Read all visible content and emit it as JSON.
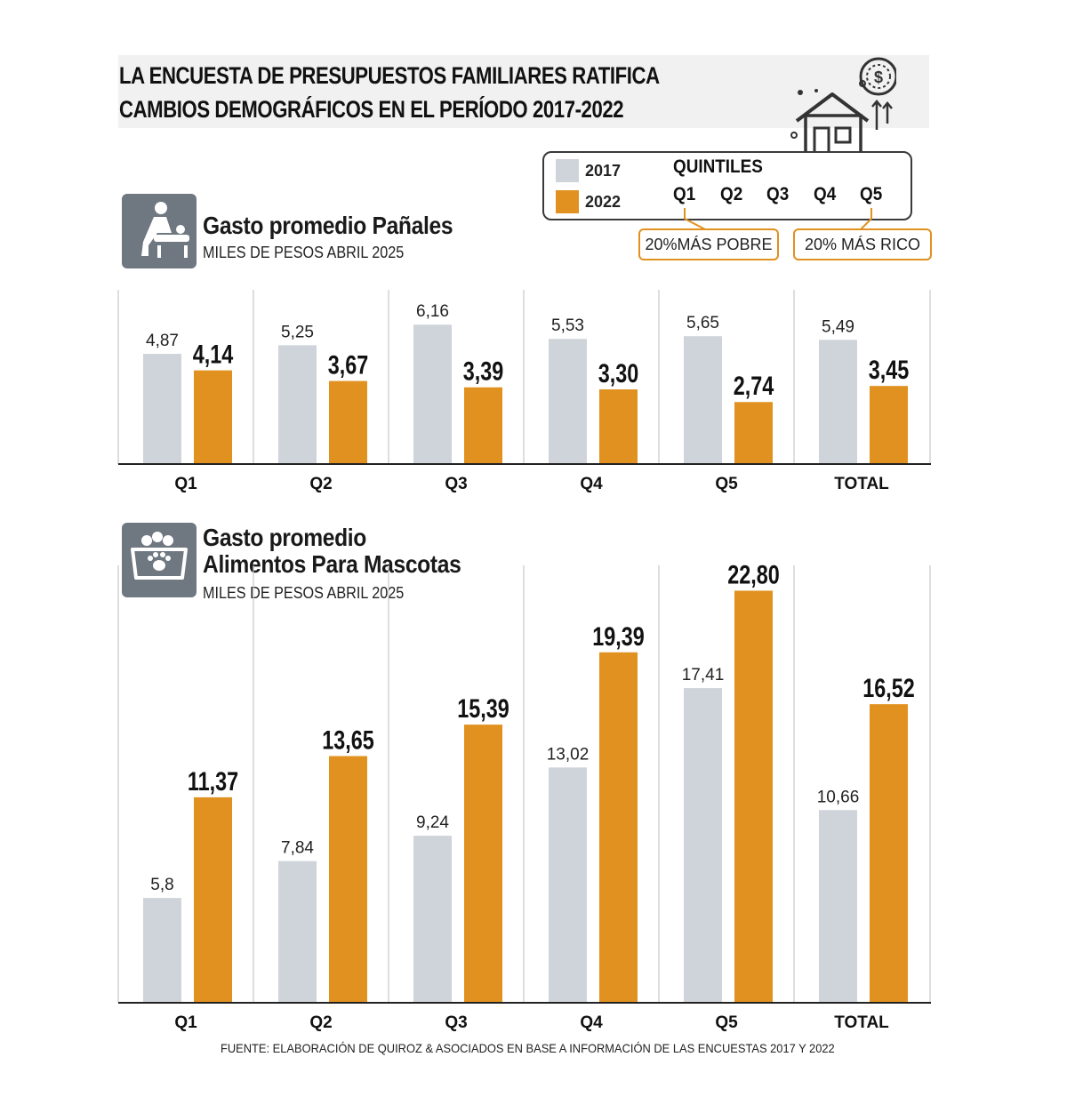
{
  "header": {
    "title_line1": "LA ENCUESTA DE PRESUPUESTOS FAMILIARES RATIFICA",
    "title_line2": "CAMBIOS DEMOGRÁFICOS EN EL PERÍODO 2017-2022"
  },
  "legend": {
    "label_2017": "2017",
    "label_2022": "2022",
    "quintiles_title": "QUINTILES",
    "quintiles": [
      "Q1",
      "Q2",
      "Q3",
      "Q4",
      "Q5"
    ],
    "poor_tag": "20%MÁS POBRE",
    "rich_tag": "20% MÁS RICO"
  },
  "colors": {
    "y2017": "#cfd4da",
    "y2022": "#e0911f",
    "icon_bg": "#6f7781"
  },
  "icons": {
    "header": "house-money-icon",
    "diapers": "baby-changing-icon",
    "pets": "pet-food-bowl-icon"
  },
  "source": "FUENTE: ELABORACIÓN DE QUIROZ & ASOCIADOS EN BASE A INFORMACIÓN DE LAS ENCUESTAS 2017 Y 2022",
  "chart_data": [
    {
      "type": "bar",
      "title": "Gasto promedio Pañales",
      "subtitle": "MILES DE PESOS ABRIL 2025",
      "categories": [
        "Q1",
        "Q2",
        "Q3",
        "Q4",
        "Q5",
        "TOTAL"
      ],
      "series": [
        {
          "name": "2017",
          "values": [
            4.87,
            5.25,
            6.16,
            5.53,
            5.65,
            5.49
          ],
          "labels": [
            "4,87",
            "5,25",
            "6,16",
            "5,53",
            "5,65",
            "5,49"
          ]
        },
        {
          "name": "2022",
          "values": [
            4.14,
            3.67,
            3.39,
            3.3,
            2.74,
            3.45
          ],
          "labels": [
            "4,14",
            "3,67",
            "3,39",
            "3,30",
            "2,74",
            "3,45"
          ]
        }
      ],
      "ylim": [
        0,
        7.7
      ],
      "grid": false
    },
    {
      "type": "bar",
      "title_line1": "Gasto promedio",
      "title_line2": "Alimentos Para Mascotas",
      "subtitle": "MILES DE PESOS ABRIL 2025",
      "categories": [
        "Q1",
        "Q2",
        "Q3",
        "Q4",
        "Q5",
        "TOTAL"
      ],
      "series": [
        {
          "name": "2017",
          "values": [
            5.8,
            7.84,
            9.24,
            13.02,
            17.41,
            10.66
          ],
          "labels": [
            "5,8",
            "7,84",
            "9,24",
            "13,02",
            "17,41",
            "10,66"
          ]
        },
        {
          "name": "2022",
          "values": [
            11.37,
            13.65,
            15.39,
            19.39,
            22.8,
            16.52
          ],
          "labels": [
            "11,37",
            "13,65",
            "15,39",
            "19,39",
            "22,80",
            "16,52"
          ]
        }
      ],
      "ylim": [
        0,
        24.2
      ],
      "grid": false
    }
  ]
}
